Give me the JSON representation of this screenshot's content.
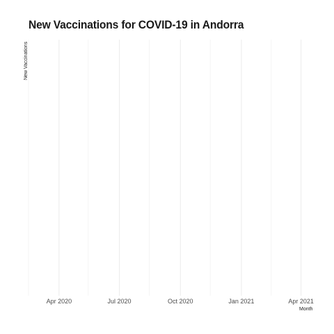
{
  "chart_data": {
    "type": "bar",
    "title": "New Vaccinations for COVID-19 in Andorra",
    "xlabel": "Month",
    "ylabel": "New Vaccinations",
    "x_axis": {
      "type": "date",
      "range": [
        "2020-02-15",
        "2021-04-15"
      ],
      "major_ticks": [
        "2020-04-01",
        "2020-07-01",
        "2020-10-01",
        "2021-01-01",
        "2021-04-01"
      ],
      "major_tick_labels": [
        "Apr 2020",
        "Jul 2020",
        "Oct 2020",
        "Jan 2021",
        "Apr 2021"
      ],
      "minor_ticks": [
        "2020-02-15",
        "2020-05-15",
        "2020-08-15",
        "2020-11-15",
        "2021-02-15"
      ]
    },
    "y_axis": {
      "tick_labels": []
    },
    "categories": [],
    "values": [],
    "grid": "vertical"
  }
}
